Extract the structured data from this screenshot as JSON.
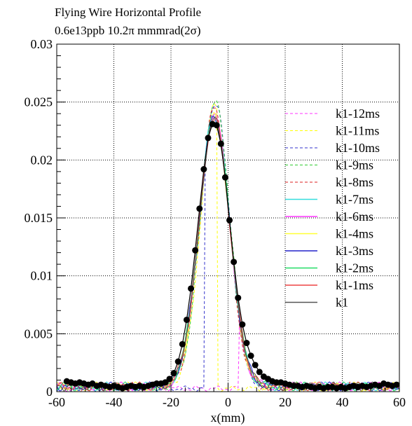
{
  "chart_data": {
    "type": "line",
    "title": "Flying Wire Horizontal Profile",
    "subtitle": "0.6e13ppb 10.2π mmmrad(2σ)",
    "xlabel": "x(mm)",
    "ylabel": "",
    "xlim": [
      -60,
      60
    ],
    "ylim": [
      0,
      0.03
    ],
    "xticks": [
      -60,
      -40,
      -20,
      0,
      20,
      40,
      60
    ],
    "xtick_labels": [
      "-60",
      "-40",
      "-20",
      "0",
      "20",
      "40",
      "60"
    ],
    "yticks": [
      0,
      0.005,
      0.01,
      0.015,
      0.02,
      0.025,
      0.03
    ],
    "ytick_labels": [
      "0",
      "0.005",
      "0.01",
      "0.015",
      "0.02",
      "0.025",
      "0.03"
    ],
    "grid": true,
    "legend_position": "right",
    "series": [
      {
        "name": "k1-12ms",
        "color": "#ff33ff",
        "dash": "4,3",
        "peak_x": -4.5,
        "peak": 0.0245,
        "sigma": 5.0,
        "clip": [
          4,
          60
        ]
      },
      {
        "name": "k1-11ms",
        "color": "#ffff00",
        "dash": "4,3",
        "peak_x": -4.5,
        "peak": 0.0245,
        "sigma": 5.0,
        "clip": [
          -60,
          -4
        ]
      },
      {
        "name": "k1-10ms",
        "color": "#3333cc",
        "dash": "4,3",
        "peak_x": -4.5,
        "peak": 0.0245,
        "sigma": 5.0,
        "clip": [
          -8,
          60
        ]
      },
      {
        "name": "k1-9ms",
        "color": "#33cc33",
        "dash": "4,3",
        "peak_x": -4.5,
        "peak": 0.0245,
        "sigma": 5.1,
        "clip": [
          -60,
          60
        ]
      },
      {
        "name": "k1-8ms",
        "color": "#dd2222",
        "dash": "4,3",
        "peak_x": -4.8,
        "peak": 0.024,
        "sigma": 5.1,
        "clip": [
          -60,
          60
        ]
      },
      {
        "name": "k1-7ms",
        "color": "#33dddd",
        "dash": "",
        "peak_x": -4.8,
        "peak": 0.0237,
        "sigma": 5.3,
        "clip": [
          -60,
          60
        ]
      },
      {
        "name": "k1-6ms",
        "color": "#ff33ff",
        "dash": "",
        "peak_x": -4.8,
        "peak": 0.0235,
        "sigma": 5.3,
        "clip": [
          -60,
          60
        ]
      },
      {
        "name": "k1-4ms",
        "color": "#ffff33",
        "dash": "",
        "peak_x": -4.8,
        "peak": 0.0233,
        "sigma": 5.3,
        "clip": [
          -60,
          60
        ]
      },
      {
        "name": "k1-3ms",
        "color": "#2222cc",
        "dash": "",
        "peak_x": -4.8,
        "peak": 0.0232,
        "sigma": 5.4,
        "clip": [
          -60,
          60
        ]
      },
      {
        "name": "k1-2ms",
        "color": "#22dd66",
        "dash": "",
        "peak_x": -4.8,
        "peak": 0.0232,
        "sigma": 5.4,
        "clip": [
          -60,
          60
        ]
      },
      {
        "name": "k1-1ms",
        "color": "#ee4444",
        "dash": "",
        "peak_x": -4.8,
        "peak": 0.0231,
        "sigma": 5.4,
        "clip": [
          -60,
          60
        ]
      },
      {
        "name": "k1",
        "color": "#555555",
        "dash": "",
        "peak_x": -4.8,
        "peak": 0.023,
        "sigma": 5.4,
        "clip": [
          -60,
          60
        ]
      }
    ],
    "points": {
      "color": "#000000",
      "x": [
        -56.5,
        -55,
        -53.5,
        -52,
        -50.5,
        -49,
        -47.5,
        -46,
        -44.5,
        -43,
        -41.5,
        -40,
        -38.5,
        -37,
        -35.5,
        -34,
        -32.5,
        -31,
        -29.5,
        -28,
        -26.5,
        -25,
        -23.5,
        -22,
        -20.5,
        -19,
        -17.5,
        -16,
        -14.5,
        -13,
        -11.5,
        -10,
        -8.5,
        -7,
        -5.5,
        -4,
        -2.5,
        -1,
        0.5,
        2,
        3.5,
        5,
        6.5,
        8,
        9.5,
        11,
        12.5,
        14,
        15.5,
        17,
        18.5,
        20,
        21.5,
        23,
        24.5,
        26,
        27.5,
        29,
        30.5,
        32,
        33.5,
        35,
        36.5,
        38,
        39.5,
        41,
        42.5,
        44,
        45.5,
        47,
        48.5,
        50,
        51.5,
        53,
        54.5,
        56,
        57.5,
        59
      ],
      "y": [
        0.0009,
        0.0008,
        0.0007,
        0.0008,
        0.0007,
        0.0006,
        0.0007,
        0.0005,
        0.0006,
        0.0005,
        0.0004,
        0.0005,
        0.0004,
        0.0003,
        0.0004,
        0.0005,
        0.0004,
        0.0005,
        0.0004,
        0.0005,
        0.0006,
        0.0007,
        0.0007,
        0.0008,
        0.0011,
        0.0016,
        0.0026,
        0.0041,
        0.0062,
        0.0089,
        0.0122,
        0.0158,
        0.0192,
        0.0219,
        0.0231,
        0.023,
        0.0214,
        0.0185,
        0.0148,
        0.0112,
        0.0081,
        0.0058,
        0.0042,
        0.0031,
        0.0023,
        0.0017,
        0.0013,
        0.0011,
        0.0009,
        0.0008,
        0.0008,
        0.0007,
        0.0006,
        0.0005,
        0.0005,
        0.0004,
        0.0005,
        0.0004,
        0.0003,
        0.0004,
        0.0003,
        0.0004,
        0.0004,
        0.0003,
        0.0004,
        0.0003,
        0.0004,
        0.0005,
        0.0004,
        0.0005,
        0.0004,
        0.0005,
        0.0006,
        0.0005,
        0.0007,
        0.0006,
        0.0005,
        0.0006
      ]
    }
  }
}
